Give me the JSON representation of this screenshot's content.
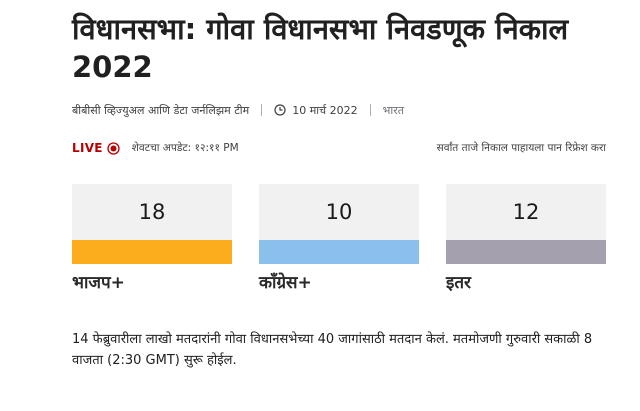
{
  "article": {
    "title": "विधानसभा: गोवा विधानसभा निवडणूक निकाल 2022",
    "byline": {
      "author": "बीबीसी व्हिज्युअल आणि डेटा जर्नलिझम टीम",
      "date": "10 मार्च 2022",
      "country": "भारत"
    }
  },
  "live": {
    "label": "LIVE",
    "updated": "शेवटचा अपडेट: १२:११ PM",
    "refresh_note": "सर्वांत ताजे निकाल पाहायला पान रिफ्रेश करा"
  },
  "results": [
    {
      "party": "भाजप+",
      "seats": "18",
      "color": "#fcad1e"
    },
    {
      "party": "काँग्रेस+",
      "seats": "10",
      "color": "#8cc0ec"
    },
    {
      "party": "इतर",
      "seats": "12",
      "color": "#a5a0ae"
    }
  ],
  "summary": "14 फेब्रुवारीला लाखो मतदारांनी गोवा विधानसभेच्या 40 जागांसाठी मतदान केलं. मतमोजणी गुरुवारी सकाळी 8 वाजता (2:30 GMT) सुरू होईल."
}
